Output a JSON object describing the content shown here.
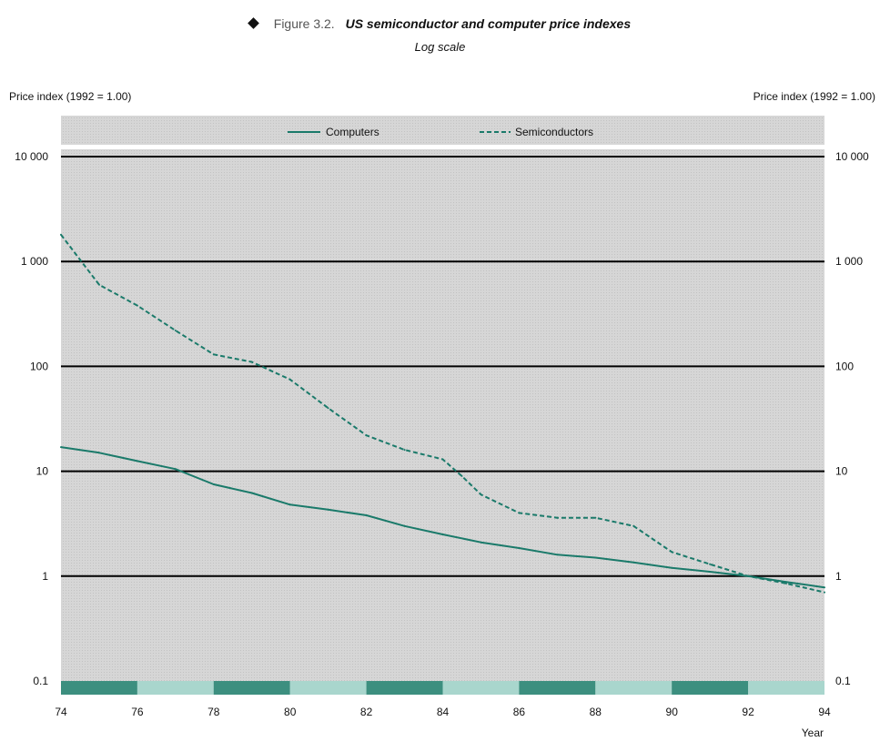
{
  "figure": {
    "number": "Figure 3.2.",
    "title": "US semiconductor and computer price indexes",
    "subtitle": "Log scale"
  },
  "colors": {
    "plot_background": "#d4d4d4",
    "line": "#1a7a6a",
    "band_dark": "#3c8f7f",
    "band_light": "#a9d6cd",
    "gridline": "#000000"
  },
  "chart_data": {
    "type": "line",
    "title": "US semiconductor and computer price indexes",
    "subtitle": "Log scale",
    "ylabel_left": "Price index (1992 = 1.00)",
    "ylabel_right": "Price index (1992 = 1.00)",
    "xlabel": "Year",
    "yscale": "log",
    "ylim": [
      0.1,
      10000
    ],
    "xlim": [
      74,
      94
    ],
    "ytick_values": [
      10000,
      1000,
      100,
      10,
      1,
      0.1
    ],
    "ytick_labels": [
      "10 000",
      "1 000",
      "100",
      "10",
      "1",
      "0.1"
    ],
    "xtick_values": [
      74,
      76,
      78,
      80,
      82,
      84,
      86,
      88,
      90,
      92,
      94
    ],
    "xtick_labels": [
      "74",
      "76",
      "78",
      "80",
      "82",
      "84",
      "86",
      "88",
      "90",
      "92",
      "94"
    ],
    "grid": "horizontal",
    "legend_position": "top-center",
    "series": [
      {
        "name": "Computers",
        "style": "solid",
        "x": [
          74,
          75,
          76,
          77,
          78,
          79,
          80,
          81,
          82,
          83,
          84,
          85,
          86,
          87,
          88,
          89,
          90,
          91,
          92,
          93,
          94
        ],
        "values": [
          17,
          15,
          12.5,
          10.5,
          7.5,
          6.2,
          4.8,
          4.3,
          3.8,
          3.0,
          2.5,
          2.1,
          1.85,
          1.6,
          1.5,
          1.35,
          1.2,
          1.1,
          1.0,
          0.88,
          0.78
        ]
      },
      {
        "name": "Semiconductors",
        "style": "dashed",
        "x": [
          74,
          75,
          76,
          77,
          78,
          79,
          80,
          81,
          82,
          83,
          84,
          84.5,
          85,
          86,
          87,
          88,
          89,
          90,
          91,
          92,
          93,
          94
        ],
        "values": [
          1800,
          600,
          380,
          220,
          130,
          110,
          75,
          40,
          22,
          16,
          13,
          9,
          6,
          4.0,
          3.6,
          3.6,
          3.0,
          1.7,
          1.3,
          1.0,
          0.85,
          0.7
        ]
      }
    ]
  }
}
